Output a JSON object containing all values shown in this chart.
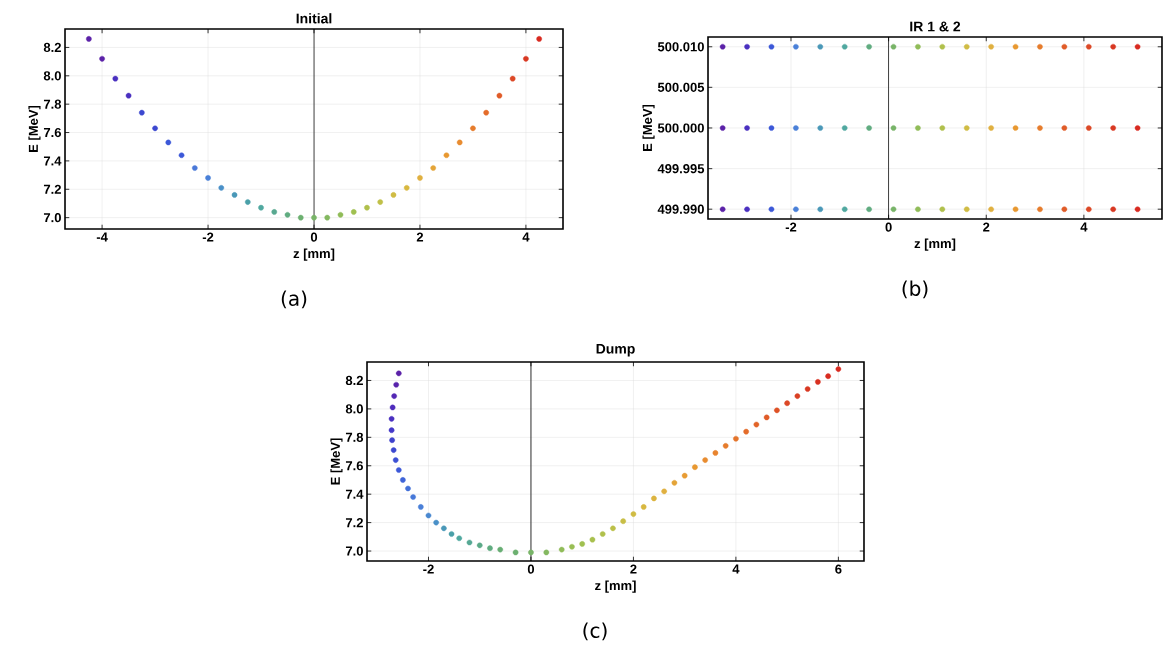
{
  "chart_data": [
    {
      "type": "scatter",
      "title": "Initial",
      "xlabel": "z [mm]",
      "ylabel": "E [MeV]",
      "annotations": [
        "(a)"
      ],
      "grid": true,
      "xlim": [
        -4.7,
        4.7
      ],
      "ylim": [
        6.92,
        8.33
      ],
      "xticks": [
        -4,
        -2,
        0,
        2,
        4
      ],
      "yticks": [
        {
          "value": 7.0,
          "label": "7.0"
        },
        {
          "value": 7.2,
          "label": "7.2"
        },
        {
          "value": 7.4,
          "label": "7.4"
        },
        {
          "value": 7.6,
          "label": "7.6"
        },
        {
          "value": 7.8,
          "label": "7.8"
        },
        {
          "value": 8.0,
          "label": "8.0"
        },
        {
          "value": 8.2,
          "label": "8.2"
        }
      ],
      "ref_lines": [
        {
          "axis": "x",
          "value": 0,
          "color": "#000000"
        }
      ],
      "series": [
        {
          "x": [
            -4.25,
            -4.0,
            -3.75,
            -3.5,
            -3.25,
            -3.0,
            -2.75,
            -2.5,
            -2.25,
            -2.0,
            -1.75,
            -1.5,
            -1.25,
            -1.0,
            -0.75,
            -0.5,
            -0.25,
            0.0,
            0.25,
            0.5,
            0.75,
            1.0,
            1.25,
            1.5,
            1.75,
            2.0,
            2.25,
            2.5,
            2.75,
            3.0,
            3.25,
            3.5,
            3.75,
            4.0,
            4.25
          ],
          "values": [
            8.26,
            8.12,
            7.98,
            7.86,
            7.74,
            7.63,
            7.53,
            7.44,
            7.35,
            7.28,
            7.21,
            7.16,
            7.11,
            7.07,
            7.04,
            7.02,
            7.0,
            7.0,
            7.0,
            7.02,
            7.04,
            7.07,
            7.11,
            7.16,
            7.21,
            7.28,
            7.35,
            7.44,
            7.53,
            7.63,
            7.74,
            7.86,
            7.98,
            8.12,
            8.26
          ],
          "colors": [
            "#5b22a8",
            "#5b22a8",
            "#4a30c0",
            "#4a30c0",
            "#3c48d0",
            "#3c48d0",
            "#3c58d8",
            "#3c58d8",
            "#4a78d8",
            "#4a80d8",
            "#4a90c8",
            "#4a98b8",
            "#4aa0a8",
            "#50a8a0",
            "#58a890",
            "#60ac80",
            "#6cb070",
            "#78b468",
            "#84b860",
            "#90bc58",
            "#a0c050",
            "#b0c04c",
            "#c0c048",
            "#d0bc44",
            "#d8b840",
            "#e0b040",
            "#e4a438",
            "#e89830",
            "#e88c30",
            "#e67c2c",
            "#e46c2a",
            "#e05c28",
            "#dc4826",
            "#d83822",
            "#d82a20"
          ]
        }
      ]
    },
    {
      "type": "scatter",
      "title": "IR 1 & 2",
      "xlabel": "z [mm]",
      "ylabel": "E [MeV]",
      "annotations": [
        "(b)"
      ],
      "grid": true,
      "xlim": [
        -3.7,
        5.6
      ],
      "ylim": [
        499.9888,
        500.0112
      ],
      "xticks": [
        -2,
        0,
        2,
        4
      ],
      "yticks": [
        {
          "value": 499.99,
          "label": "499.990"
        },
        {
          "value": 499.995,
          "label": "499.995"
        },
        {
          "value": 500.0,
          "label": "500.000"
        },
        {
          "value": 500.005,
          "label": "500.005"
        },
        {
          "value": 500.01,
          "label": "500.010"
        }
      ],
      "ref_lines": [
        {
          "axis": "x",
          "value": 0,
          "color": "#000000"
        }
      ],
      "series": [
        {
          "x": [
            -3.4,
            -2.9,
            -2.4,
            -1.9,
            -1.4,
            -0.9,
            -0.4,
            0.1,
            0.6,
            1.1,
            1.6,
            2.1,
            2.6,
            3.1,
            3.6,
            4.1,
            4.6,
            5.1
          ],
          "values": [
            500.01,
            500.01,
            500.01,
            500.01,
            500.01,
            500.01,
            500.01,
            500.01,
            500.01,
            500.01,
            500.01,
            500.01,
            500.01,
            500.01,
            500.01,
            500.01,
            500.01,
            500.01
          ],
          "colors": [
            "#5b22a8",
            "#4a30c0",
            "#3c58d8",
            "#4a80d8",
            "#4a98b8",
            "#50a8a0",
            "#60ac80",
            "#78b468",
            "#90bc58",
            "#b0c04c",
            "#d0bc44",
            "#e0b040",
            "#e89830",
            "#e67c2c",
            "#e05c28",
            "#dc4826",
            "#d83822",
            "#d82a20"
          ]
        },
        {
          "x": [
            -3.4,
            -2.9,
            -2.4,
            -1.9,
            -1.4,
            -0.9,
            -0.4,
            0.1,
            0.6,
            1.1,
            1.6,
            2.1,
            2.6,
            3.1,
            3.6,
            4.1,
            4.6,
            5.1
          ],
          "values": [
            500.0,
            500.0,
            500.0,
            500.0,
            500.0,
            500.0,
            500.0,
            500.0,
            500.0,
            500.0,
            500.0,
            500.0,
            500.0,
            500.0,
            500.0,
            500.0,
            500.0,
            500.0
          ],
          "colors": [
            "#5b22a8",
            "#4a30c0",
            "#3c58d8",
            "#4a80d8",
            "#4a98b8",
            "#50a8a0",
            "#60ac80",
            "#78b468",
            "#90bc58",
            "#b0c04c",
            "#d0bc44",
            "#e0b040",
            "#e89830",
            "#e67c2c",
            "#e05c28",
            "#dc4826",
            "#d83822",
            "#d82a20"
          ]
        },
        {
          "x": [
            -3.4,
            -2.9,
            -2.4,
            -1.9,
            -1.4,
            -0.9,
            -0.4,
            0.1,
            0.6,
            1.1,
            1.6,
            2.1,
            2.6,
            3.1,
            3.6,
            4.1,
            4.6,
            5.1
          ],
          "values": [
            499.99,
            499.99,
            499.99,
            499.99,
            499.99,
            499.99,
            499.99,
            499.99,
            499.99,
            499.99,
            499.99,
            499.99,
            499.99,
            499.99,
            499.99,
            499.99,
            499.99,
            499.99
          ],
          "colors": [
            "#5b22a8",
            "#4a30c0",
            "#3c58d8",
            "#4a80d8",
            "#4a98b8",
            "#50a8a0",
            "#60ac80",
            "#78b468",
            "#90bc58",
            "#b0c04c",
            "#d0bc44",
            "#e0b040",
            "#e89830",
            "#e67c2c",
            "#e05c28",
            "#dc4826",
            "#d83822",
            "#d82a20"
          ]
        }
      ]
    },
    {
      "type": "scatter",
      "title": "Dump",
      "xlabel": "z [mm]",
      "ylabel": "E [MeV]",
      "annotations": [
        "(c)"
      ],
      "grid": true,
      "xlim": [
        -3.2,
        6.5
      ],
      "ylim": [
        6.93,
        8.33
      ],
      "xticks": [
        -2,
        0,
        2,
        4,
        6
      ],
      "yticks": [
        {
          "value": 7.0,
          "label": "7.0"
        },
        {
          "value": 7.2,
          "label": "7.2"
        },
        {
          "value": 7.4,
          "label": "7.4"
        },
        {
          "value": 7.6,
          "label": "7.6"
        },
        {
          "value": 7.8,
          "label": "7.8"
        },
        {
          "value": 8.0,
          "label": "8.0"
        },
        {
          "value": 8.2,
          "label": "8.2"
        }
      ],
      "ref_lines": [
        {
          "axis": "x",
          "value": 0,
          "color": "#000000"
        }
      ],
      "series": [
        {
          "x": [
            -2.58,
            -2.63,
            -2.67,
            -2.7,
            -2.72,
            -2.72,
            -2.71,
            -2.68,
            -2.64,
            -2.58,
            -2.5,
            -2.4,
            -2.3,
            -2.15,
            -2.0,
            -1.85,
            -1.7,
            -1.55,
            -1.4,
            -1.2,
            -1.0,
            -0.8,
            -0.6,
            -0.3,
            0.0,
            0.3,
            0.6,
            0.8,
            1.0,
            1.2,
            1.4,
            1.6,
            1.8,
            2.0,
            2.2,
            2.4,
            2.6,
            2.8,
            3.0,
            3.2,
            3.4,
            3.6,
            3.8,
            4.0,
            4.2,
            4.4,
            4.6,
            4.8,
            5.0,
            5.2,
            5.4,
            5.6,
            5.8,
            6.0
          ],
          "values": [
            8.25,
            8.17,
            8.09,
            8.01,
            7.93,
            7.85,
            7.78,
            7.71,
            7.64,
            7.57,
            7.5,
            7.44,
            7.38,
            7.31,
            7.25,
            7.2,
            7.16,
            7.12,
            7.09,
            7.06,
            7.04,
            7.02,
            7.01,
            6.99,
            6.99,
            6.99,
            7.01,
            7.03,
            7.05,
            7.08,
            7.12,
            7.16,
            7.21,
            7.26,
            7.31,
            7.37,
            7.42,
            7.48,
            7.53,
            7.59,
            7.64,
            7.69,
            7.74,
            7.79,
            7.84,
            7.89,
            7.94,
            7.99,
            8.04,
            8.09,
            8.14,
            8.19,
            8.23,
            8.28
          ],
          "colors": [
            "#5b22a8",
            "#5824ac",
            "#5428b4",
            "#4e2cbc",
            "#4a30c0",
            "#4438c8",
            "#3e42cc",
            "#3c48d0",
            "#3c50d4",
            "#3c58d8",
            "#3f64d8",
            "#4270d8",
            "#4678d8",
            "#4a80d8",
            "#4a88d0",
            "#4a90c8",
            "#4a98b8",
            "#4aa0a8",
            "#50a8a0",
            "#56a894",
            "#5caa88",
            "#60ac80",
            "#68ae74",
            "#6cb070",
            "#78b468",
            "#84b860",
            "#90bc58",
            "#98be54",
            "#a0c050",
            "#a8c04e",
            "#b0c04c",
            "#bcc048",
            "#c8be46",
            "#d0bc44",
            "#d8b840",
            "#dcb440",
            "#e0b040",
            "#e4a438",
            "#e89c34",
            "#e89830",
            "#e88c30",
            "#e8842e",
            "#e67c2c",
            "#e4742b",
            "#e46c2a",
            "#e26428",
            "#e05c28",
            "#de5226",
            "#dc4826",
            "#da4024",
            "#d83822",
            "#d83020",
            "#d82c20",
            "#d82a20"
          ]
        }
      ]
    }
  ]
}
